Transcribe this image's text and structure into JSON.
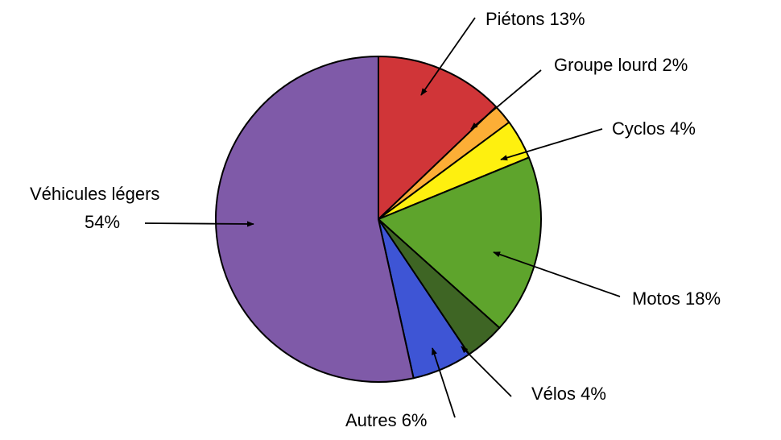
{
  "chart_data": {
    "type": "pie",
    "title": "",
    "slices": [
      {
        "key": "pietons",
        "label": "Piétons",
        "value": 13,
        "display": "Piétons 13%",
        "color": "#d03538"
      },
      {
        "key": "groupe_lourd",
        "label": "Groupe lourd",
        "value": 2,
        "display": "Groupe lourd 2%",
        "color": "#fcae36"
      },
      {
        "key": "cyclos",
        "label": "Cyclos",
        "value": 4,
        "display": "Cyclos 4%",
        "color": "#fef00f"
      },
      {
        "key": "motos",
        "label": "Motos",
        "value": 18,
        "display": "Motos 18%",
        "color": "#5ea42c"
      },
      {
        "key": "velos",
        "label": "Vélos",
        "value": 4,
        "display": "Vélos 4%",
        "color": "#3e6524"
      },
      {
        "key": "autres",
        "label": "Autres",
        "value": 6,
        "display": "Autres 6%",
        "color": "#3e55d5"
      },
      {
        "key": "vehicules_legers",
        "label": "Véhicules légers",
        "value": 54,
        "display": "Véhicules légers 54%",
        "display_line1": "Véhicules légers",
        "display_line2": "54%",
        "color": "#7f5aa8"
      }
    ]
  }
}
